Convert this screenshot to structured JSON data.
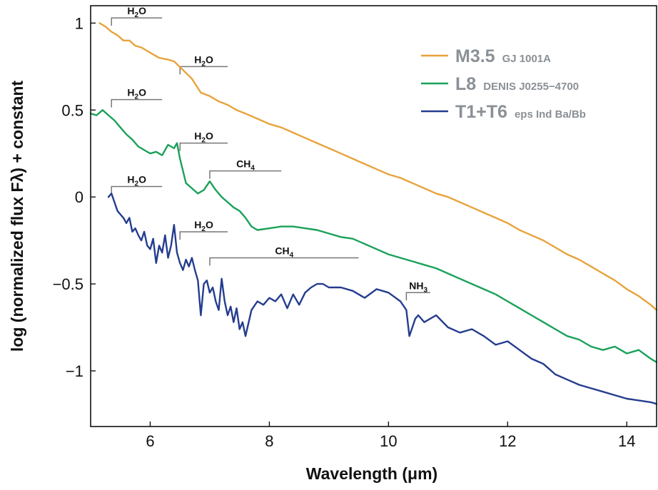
{
  "chart_data": {
    "type": "line",
    "xlabel": "Wavelength (μm)",
    "ylabel": "log (normalized flux Fλ) + constant",
    "xlim": [
      5.0,
      14.5
    ],
    "ylim": [
      -1.32,
      1.1
    ],
    "xticks": [
      6,
      8,
      10,
      12,
      14
    ],
    "yticks": [
      1,
      0.5,
      0,
      -0.5,
      -1
    ],
    "ytick_labels": [
      "1",
      "0.5",
      "0",
      "−0.5",
      "−1"
    ],
    "grid": false,
    "legend_position": "top-right",
    "series": [
      {
        "name": "M3.5",
        "object": "GJ 1001A",
        "color": "#e8a33c",
        "points": [
          [
            5.15,
            1.0
          ],
          [
            5.25,
            0.98
          ],
          [
            5.35,
            0.95
          ],
          [
            5.45,
            0.93
          ],
          [
            5.55,
            0.9
          ],
          [
            5.65,
            0.9
          ],
          [
            5.75,
            0.87
          ],
          [
            5.85,
            0.86
          ],
          [
            5.95,
            0.84
          ],
          [
            6.05,
            0.82
          ],
          [
            6.15,
            0.8
          ],
          [
            6.3,
            0.79
          ],
          [
            6.4,
            0.78
          ],
          [
            6.55,
            0.73
          ],
          [
            6.7,
            0.68
          ],
          [
            6.85,
            0.6
          ],
          [
            7.0,
            0.58
          ],
          [
            7.15,
            0.55
          ],
          [
            7.3,
            0.53
          ],
          [
            7.45,
            0.5
          ],
          [
            7.6,
            0.48
          ],
          [
            7.8,
            0.45
          ],
          [
            8.0,
            0.42
          ],
          [
            8.2,
            0.4
          ],
          [
            8.4,
            0.37
          ],
          [
            8.6,
            0.34
          ],
          [
            8.8,
            0.31
          ],
          [
            9.0,
            0.28
          ],
          [
            9.2,
            0.25
          ],
          [
            9.4,
            0.22
          ],
          [
            9.6,
            0.19
          ],
          [
            9.8,
            0.16
          ],
          [
            10.0,
            0.13
          ],
          [
            10.2,
            0.11
          ],
          [
            10.4,
            0.08
          ],
          [
            10.6,
            0.05
          ],
          [
            10.8,
            0.02
          ],
          [
            11.0,
            0.0
          ],
          [
            11.2,
            -0.03
          ],
          [
            11.4,
            -0.06
          ],
          [
            11.6,
            -0.09
          ],
          [
            11.8,
            -0.12
          ],
          [
            12.0,
            -0.15
          ],
          [
            12.2,
            -0.19
          ],
          [
            12.4,
            -0.22
          ],
          [
            12.6,
            -0.25
          ],
          [
            12.8,
            -0.29
          ],
          [
            13.0,
            -0.33
          ],
          [
            13.2,
            -0.36
          ],
          [
            13.4,
            -0.4
          ],
          [
            13.6,
            -0.44
          ],
          [
            13.8,
            -0.48
          ],
          [
            14.0,
            -0.53
          ],
          [
            14.2,
            -0.57
          ],
          [
            14.4,
            -0.62
          ],
          [
            14.5,
            -0.65
          ]
        ]
      },
      {
        "name": "L8",
        "object": "DENIS J0255−4700",
        "color": "#1aa15a",
        "points": [
          [
            5.0,
            0.48
          ],
          [
            5.1,
            0.47
          ],
          [
            5.2,
            0.5
          ],
          [
            5.3,
            0.47
          ],
          [
            5.4,
            0.44
          ],
          [
            5.5,
            0.4
          ],
          [
            5.6,
            0.36
          ],
          [
            5.7,
            0.33
          ],
          [
            5.8,
            0.29
          ],
          [
            5.9,
            0.27
          ],
          [
            6.0,
            0.25
          ],
          [
            6.1,
            0.26
          ],
          [
            6.2,
            0.24
          ],
          [
            6.3,
            0.3
          ],
          [
            6.4,
            0.28
          ],
          [
            6.45,
            0.31
          ],
          [
            6.5,
            0.22
          ],
          [
            6.6,
            0.08
          ],
          [
            6.7,
            0.05
          ],
          [
            6.8,
            0.02
          ],
          [
            6.9,
            0.04
          ],
          [
            7.0,
            0.09
          ],
          [
            7.1,
            0.04
          ],
          [
            7.2,
            0.0
          ],
          [
            7.3,
            -0.03
          ],
          [
            7.4,
            -0.06
          ],
          [
            7.5,
            -0.08
          ],
          [
            7.6,
            -0.12
          ],
          [
            7.7,
            -0.17
          ],
          [
            7.8,
            -0.19
          ],
          [
            8.0,
            -0.18
          ],
          [
            8.2,
            -0.17
          ],
          [
            8.4,
            -0.17
          ],
          [
            8.6,
            -0.18
          ],
          [
            8.8,
            -0.19
          ],
          [
            9.0,
            -0.21
          ],
          [
            9.2,
            -0.23
          ],
          [
            9.4,
            -0.24
          ],
          [
            9.6,
            -0.27
          ],
          [
            9.8,
            -0.3
          ],
          [
            10.0,
            -0.33
          ],
          [
            10.2,
            -0.35
          ],
          [
            10.4,
            -0.37
          ],
          [
            10.6,
            -0.39
          ],
          [
            10.8,
            -0.41
          ],
          [
            11.0,
            -0.44
          ],
          [
            11.2,
            -0.47
          ],
          [
            11.4,
            -0.5
          ],
          [
            11.6,
            -0.53
          ],
          [
            11.8,
            -0.56
          ],
          [
            12.0,
            -0.6
          ],
          [
            12.2,
            -0.64
          ],
          [
            12.4,
            -0.68
          ],
          [
            12.6,
            -0.72
          ],
          [
            12.8,
            -0.76
          ],
          [
            13.0,
            -0.8
          ],
          [
            13.2,
            -0.82
          ],
          [
            13.4,
            -0.86
          ],
          [
            13.6,
            -0.88
          ],
          [
            13.8,
            -0.86
          ],
          [
            14.0,
            -0.9
          ],
          [
            14.2,
            -0.88
          ],
          [
            14.4,
            -0.93
          ],
          [
            14.5,
            -0.95
          ]
        ]
      },
      {
        "name": "T1+T6",
        "object": "eps Ind Ba/Bb",
        "color": "#253d8f",
        "points": [
          [
            5.3,
            0.0
          ],
          [
            5.35,
            0.02
          ],
          [
            5.4,
            -0.03
          ],
          [
            5.45,
            -0.08
          ],
          [
            5.5,
            -0.1
          ],
          [
            5.55,
            -0.12
          ],
          [
            5.6,
            -0.15
          ],
          [
            5.65,
            -0.12
          ],
          [
            5.7,
            -0.2
          ],
          [
            5.75,
            -0.18
          ],
          [
            5.8,
            -0.22
          ],
          [
            5.85,
            -0.25
          ],
          [
            5.9,
            -0.2
          ],
          [
            5.95,
            -0.28
          ],
          [
            6.0,
            -0.3
          ],
          [
            6.05,
            -0.24
          ],
          [
            6.1,
            -0.38
          ],
          [
            6.15,
            -0.28
          ],
          [
            6.2,
            -0.32
          ],
          [
            6.25,
            -0.22
          ],
          [
            6.3,
            -0.35
          ],
          [
            6.35,
            -0.28
          ],
          [
            6.4,
            -0.16
          ],
          [
            6.45,
            -0.32
          ],
          [
            6.5,
            -0.38
          ],
          [
            6.55,
            -0.42
          ],
          [
            6.6,
            -0.36
          ],
          [
            6.65,
            -0.4
          ],
          [
            6.7,
            -0.35
          ],
          [
            6.75,
            -0.42
          ],
          [
            6.8,
            -0.48
          ],
          [
            6.85,
            -0.68
          ],
          [
            6.9,
            -0.5
          ],
          [
            6.95,
            -0.48
          ],
          [
            7.0,
            -0.55
          ],
          [
            7.05,
            -0.52
          ],
          [
            7.1,
            -0.6
          ],
          [
            7.15,
            -0.65
          ],
          [
            7.2,
            -0.47
          ],
          [
            7.25,
            -0.6
          ],
          [
            7.3,
            -0.68
          ],
          [
            7.35,
            -0.63
          ],
          [
            7.4,
            -0.72
          ],
          [
            7.45,
            -0.64
          ],
          [
            7.5,
            -0.76
          ],
          [
            7.55,
            -0.72
          ],
          [
            7.6,
            -0.8
          ],
          [
            7.7,
            -0.65
          ],
          [
            7.8,
            -0.6
          ],
          [
            7.9,
            -0.62
          ],
          [
            8.0,
            -0.58
          ],
          [
            8.1,
            -0.6
          ],
          [
            8.2,
            -0.56
          ],
          [
            8.3,
            -0.64
          ],
          [
            8.4,
            -0.56
          ],
          [
            8.5,
            -0.62
          ],
          [
            8.6,
            -0.55
          ],
          [
            8.7,
            -0.52
          ],
          [
            8.8,
            -0.5
          ],
          [
            8.9,
            -0.5
          ],
          [
            9.0,
            -0.52
          ],
          [
            9.2,
            -0.52
          ],
          [
            9.4,
            -0.54
          ],
          [
            9.6,
            -0.58
          ],
          [
            9.8,
            -0.53
          ],
          [
            10.0,
            -0.55
          ],
          [
            10.2,
            -0.6
          ],
          [
            10.3,
            -0.65
          ],
          [
            10.35,
            -0.8
          ],
          [
            10.4,
            -0.75
          ],
          [
            10.45,
            -0.7
          ],
          [
            10.5,
            -0.68
          ],
          [
            10.6,
            -0.72
          ],
          [
            10.8,
            -0.68
          ],
          [
            11.0,
            -0.75
          ],
          [
            11.2,
            -0.78
          ],
          [
            11.4,
            -0.76
          ],
          [
            11.6,
            -0.8
          ],
          [
            11.8,
            -0.85
          ],
          [
            12.0,
            -0.83
          ],
          [
            12.2,
            -0.88
          ],
          [
            12.4,
            -0.93
          ],
          [
            12.6,
            -0.96
          ],
          [
            12.8,
            -1.02
          ],
          [
            13.0,
            -1.05
          ],
          [
            13.2,
            -1.08
          ],
          [
            13.4,
            -1.1
          ],
          [
            13.6,
            -1.12
          ],
          [
            13.8,
            -1.14
          ],
          [
            14.0,
            -1.16
          ],
          [
            14.2,
            -1.17
          ],
          [
            14.4,
            -1.18
          ],
          [
            14.5,
            -1.19
          ]
        ]
      }
    ],
    "annotations": [
      {
        "label": "H2O",
        "x_start": 5.35,
        "x_end": 6.2,
        "y": 1.03
      },
      {
        "label": "H2O",
        "x_start": 6.5,
        "x_end": 7.3,
        "y": 0.75
      },
      {
        "label": "H2O",
        "x_start": 5.35,
        "x_end": 6.2,
        "y": 0.56
      },
      {
        "label": "H2O",
        "x_start": 6.5,
        "x_end": 7.3,
        "y": 0.31
      },
      {
        "label": "CH4",
        "x_start": 7.0,
        "x_end": 8.2,
        "y": 0.15
      },
      {
        "label": "H2O",
        "x_start": 5.35,
        "x_end": 6.2,
        "y": 0.06
      },
      {
        "label": "H2O",
        "x_start": 6.5,
        "x_end": 7.3,
        "y": -0.2
      },
      {
        "label": "CH4",
        "x_start": 7.0,
        "x_end": 9.5,
        "y": -0.35
      },
      {
        "label": "NH3",
        "x_start": 10.3,
        "x_end": 10.7,
        "y": -0.55
      }
    ]
  }
}
